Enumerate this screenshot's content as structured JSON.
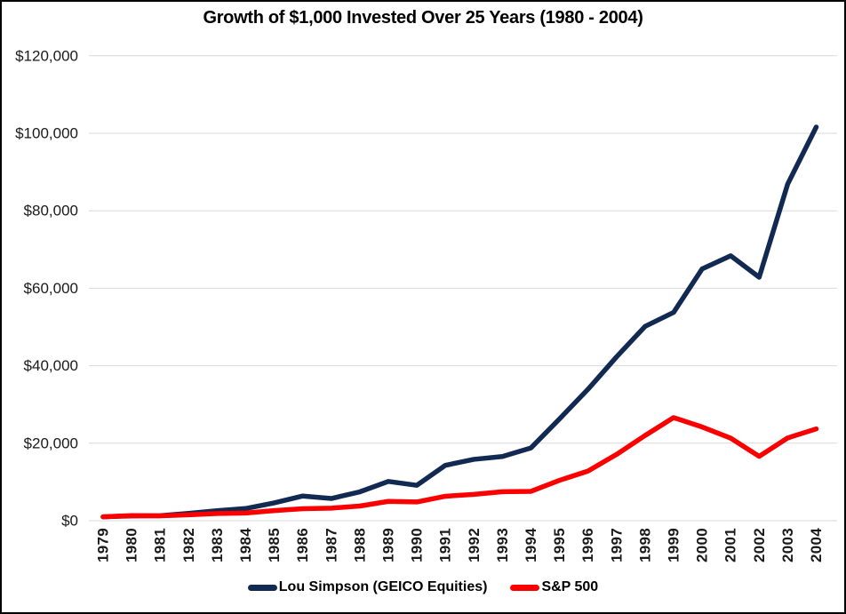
{
  "chart_data": {
    "type": "line",
    "title": "Growth of $1,000 Invested Over 25 Years (1980 - 2004)",
    "x": [
      "1979",
      "1980",
      "1981",
      "1982",
      "1983",
      "1984",
      "1985",
      "1986",
      "1987",
      "1988",
      "1989",
      "1990",
      "1991",
      "1992",
      "1993",
      "1994",
      "1995",
      "1996",
      "1997",
      "1998",
      "1999",
      "2000",
      "2001",
      "2002",
      "2003",
      "2004"
    ],
    "series": [
      {
        "name": "Lou Simpson (GEICO Equities)",
        "color": "#122A52",
        "values": [
          1000,
          1237,
          1304,
          1901,
          2585,
          3149,
          4591,
          6368,
          5731,
          7450,
          10140,
          9136,
          14297,
          15842,
          16570,
          18791,
          26269,
          33940,
          42289,
          50155,
          53766,
          65003,
          68383,
          62844,
          86913,
          101602
        ]
      },
      {
        "name": "S&P 500",
        "color": "#FA0000",
        "values": [
          1000,
          1323,
          1257,
          1526,
          1868,
          1982,
          2608,
          3093,
          3250,
          3790,
          4991,
          4837,
          6312,
          6792,
          7478,
          7575,
          10423,
          12820,
          17102,
          21993,
          26612,
          24190,
          21311,
          16601,
          21366,
          23695
        ]
      }
    ],
    "ylim": [
      0,
      120000
    ],
    "y_ticks": [
      {
        "value": 0,
        "label": "$0"
      },
      {
        "value": 20000,
        "label": "$20,000"
      },
      {
        "value": 40000,
        "label": "$40,000"
      },
      {
        "value": 60000,
        "label": "$60,000"
      },
      {
        "value": 80000,
        "label": "$80,000"
      },
      {
        "value": 100000,
        "label": "$100,000"
      },
      {
        "value": 120000,
        "label": "$120,000"
      }
    ],
    "grid": true,
    "gridline_color": "#D9D9D9",
    "legend_position": "bottom"
  }
}
